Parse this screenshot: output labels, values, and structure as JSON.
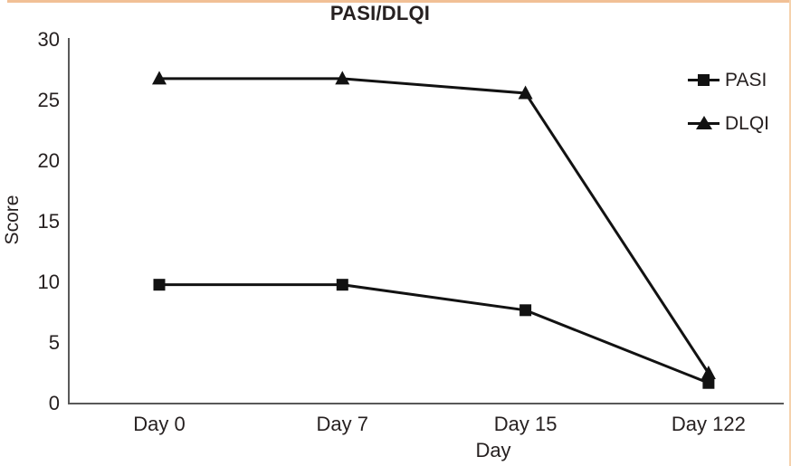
{
  "page": {
    "background": "#ffffff",
    "top_border_color": "#f1c096",
    "right_border_color": "#f5d2ad"
  },
  "chart_data": {
    "type": "line",
    "title": "PASI/DLQI",
    "xlabel": "Day",
    "ylabel": "Score",
    "categories": [
      "Day 0",
      "Day 7",
      "Day 15",
      "Day 122"
    ],
    "series": [
      {
        "name": "PASI",
        "marker": "square",
        "color": "#121212",
        "values": [
          9.8,
          9.8,
          7.7,
          1.7
        ]
      },
      {
        "name": "DLQI",
        "marker": "triangle",
        "color": "#121212",
        "values": [
          26.8,
          26.8,
          25.6,
          2.5
        ]
      }
    ],
    "ylim": [
      0,
      30
    ],
    "yticks": [
      0,
      5,
      10,
      15,
      20,
      25,
      30
    ],
    "grid": false,
    "legend_position": "top-right",
    "axis_color": "#595959"
  }
}
